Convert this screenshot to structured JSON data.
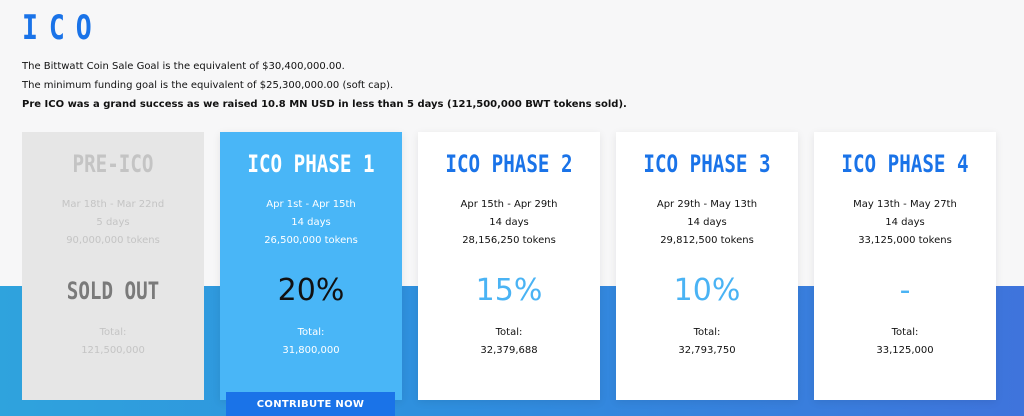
{
  "page": {
    "title": "ICO",
    "intro": [
      "The Bittwatt Coin Sale Goal is the equivalent of $30,400,000.00.",
      "The minimum funding goal is the equivalent of $25,300,000.00 (soft cap).",
      "Pre ICO was a grand success as we raised 10.8 MN USD in less than 5 days (121,500,000 BWT tokens sold)."
    ]
  },
  "phases": [
    {
      "name": "PRE-ICO",
      "dates": "Mar 18th - Mar 22nd",
      "duration": "5 days",
      "tokens": "90,000,000 tokens",
      "highlight": "SOLD OUT",
      "total_label": "Total:",
      "total": "121,500,000",
      "state": "sold-out"
    },
    {
      "name": "ICO PHASE 1",
      "dates": "Apr 1st - Apr 15th",
      "duration": "14 days",
      "tokens": "26,500,000 tokens",
      "highlight": "20%",
      "total_label": "Total:",
      "total": "31,800,000",
      "state": "active"
    },
    {
      "name": "ICO PHASE 2",
      "dates": "Apr 15th - Apr 29th",
      "duration": "14 days",
      "tokens": "28,156,250 tokens",
      "highlight": "15%",
      "total_label": "Total:",
      "total": "32,379,688",
      "state": "upcoming"
    },
    {
      "name": "ICO PHASE 3",
      "dates": "Apr 29th - May 13th",
      "duration": "14 days",
      "tokens": "29,812,500 tokens",
      "highlight": "10%",
      "total_label": "Total:",
      "total": "32,793,750",
      "state": "upcoming"
    },
    {
      "name": "ICO PHASE 4",
      "dates": "May 13th - May 27th",
      "duration": "14 days",
      "tokens": "33,125,000 tokens",
      "highlight": "-",
      "total_label": "Total:",
      "total": "33,125,000",
      "state": "upcoming"
    }
  ],
  "contribute_label": "CONTRIBUTE NOW",
  "colors": {
    "accent": "#1a73e8",
    "active_card": "#49b6f7",
    "sold_card": "#e6e6e6",
    "percent_text": "#4ab3f4"
  }
}
